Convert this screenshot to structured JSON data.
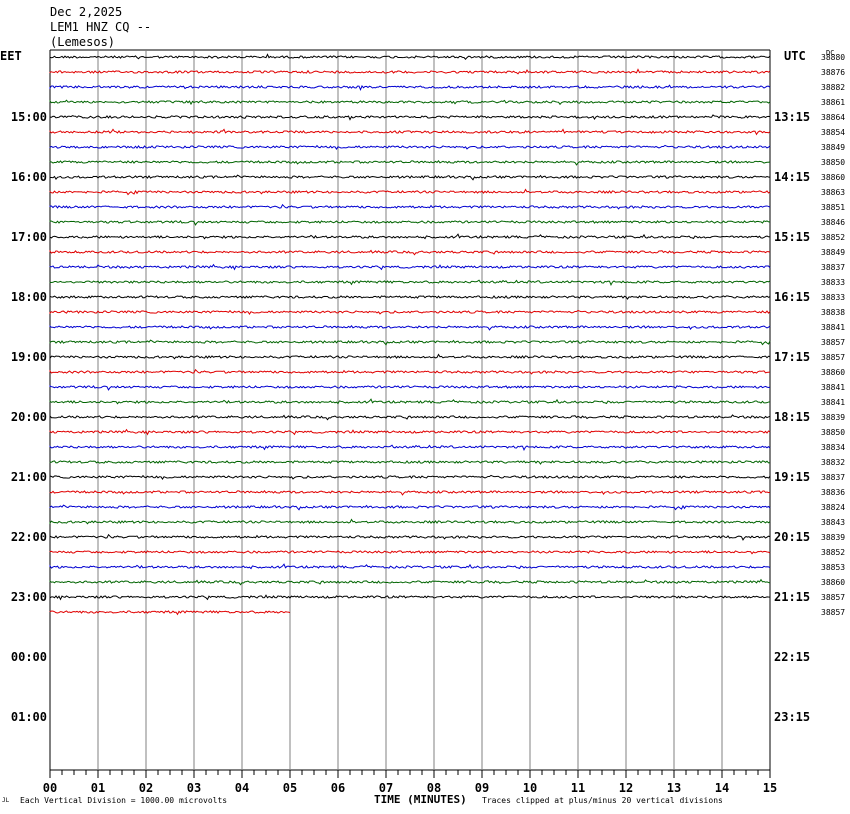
{
  "header": {
    "date": "Dec 2,2025",
    "station": "LEM1 HNZ CQ --",
    "location": "(Lemesos)"
  },
  "left_zone": "EET",
  "right_zone": "UTC",
  "dc_label": "DC",
  "footer": {
    "scale_note": "Each Vertical Division = 1000.00 microvolts",
    "xlabel": "TIME (MINUTES)",
    "clip_note": "Traces clipped at plus/minus 20 vertical divisions",
    "corner_mark": "JL"
  },
  "colors": {
    "traces": [
      "#000000",
      "#e00000",
      "#0000d0",
      "#006400"
    ],
    "grid": "#808080"
  },
  "chart_data": {
    "type": "line",
    "title": "",
    "xlabel": "TIME (MINUTES)",
    "xlim": [
      0,
      15
    ],
    "x_ticks": [
      "00",
      "01",
      "02",
      "03",
      "04",
      "05",
      "06",
      "07",
      "08",
      "09",
      "10",
      "11",
      "12",
      "13",
      "14",
      "15"
    ],
    "minutes_per_trace": 15,
    "eet_hour_labels": [
      "15:00",
      "16:00",
      "17:00",
      "18:00",
      "19:00",
      "20:00",
      "21:00",
      "22:00",
      "23:00",
      "00:00",
      "01:00"
    ],
    "utc_hour_labels": [
      "13:15",
      "14:15",
      "15:15",
      "16:15",
      "17:15",
      "18:15",
      "19:15",
      "20:15",
      "21:15",
      "22:15",
      "23:15"
    ],
    "dc_offsets": [
      38880,
      38876,
      38882,
      38861,
      38864,
      38854,
      38849,
      38850,
      38860,
      38863,
      38851,
      38846,
      38852,
      38849,
      38837,
      38833,
      38833,
      38838,
      38841,
      38857,
      38857,
      38860,
      38841,
      38841,
      38839,
      38850,
      38834,
      38832,
      38837,
      38836,
      38824,
      38843,
      38839,
      38852,
      38853,
      38860,
      38857,
      38857
    ],
    "trace_count": 38,
    "last_trace_end_minute": 5
  }
}
